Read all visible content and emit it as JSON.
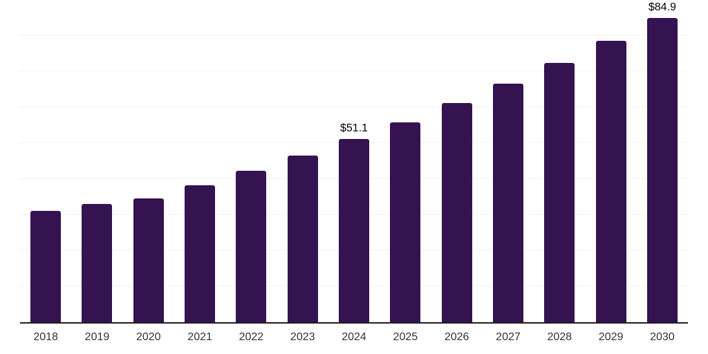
{
  "chart_data": {
    "type": "bar",
    "title": "",
    "xlabel": "",
    "ylabel": "",
    "categories": [
      "2018",
      "2019",
      "2020",
      "2021",
      "2022",
      "2023",
      "2024",
      "2025",
      "2026",
      "2027",
      "2028",
      "2029",
      "2030"
    ],
    "values": [
      31.1,
      33.0,
      34.5,
      38.3,
      42.2,
      46.5,
      51.1,
      55.7,
      61.1,
      66.5,
      72.4,
      78.5,
      84.9
    ],
    "data_labels": [
      "",
      "",
      "",
      "",
      "",
      "",
      "$51.1",
      "",
      "",
      "",
      "",
      "",
      "$84.9"
    ],
    "ylim": [
      0,
      90.3
    ],
    "gridline_interval": 10,
    "grid": "horizontal-only",
    "legend": "none",
    "y_axis_tick_labels": "none",
    "colors": {
      "bar": "#351250",
      "axis_line": "#1f1f1f",
      "gridline": "#f1f1f1",
      "tick_label": "#333333",
      "data_label": "#000000",
      "background": "#ffffff"
    }
  }
}
